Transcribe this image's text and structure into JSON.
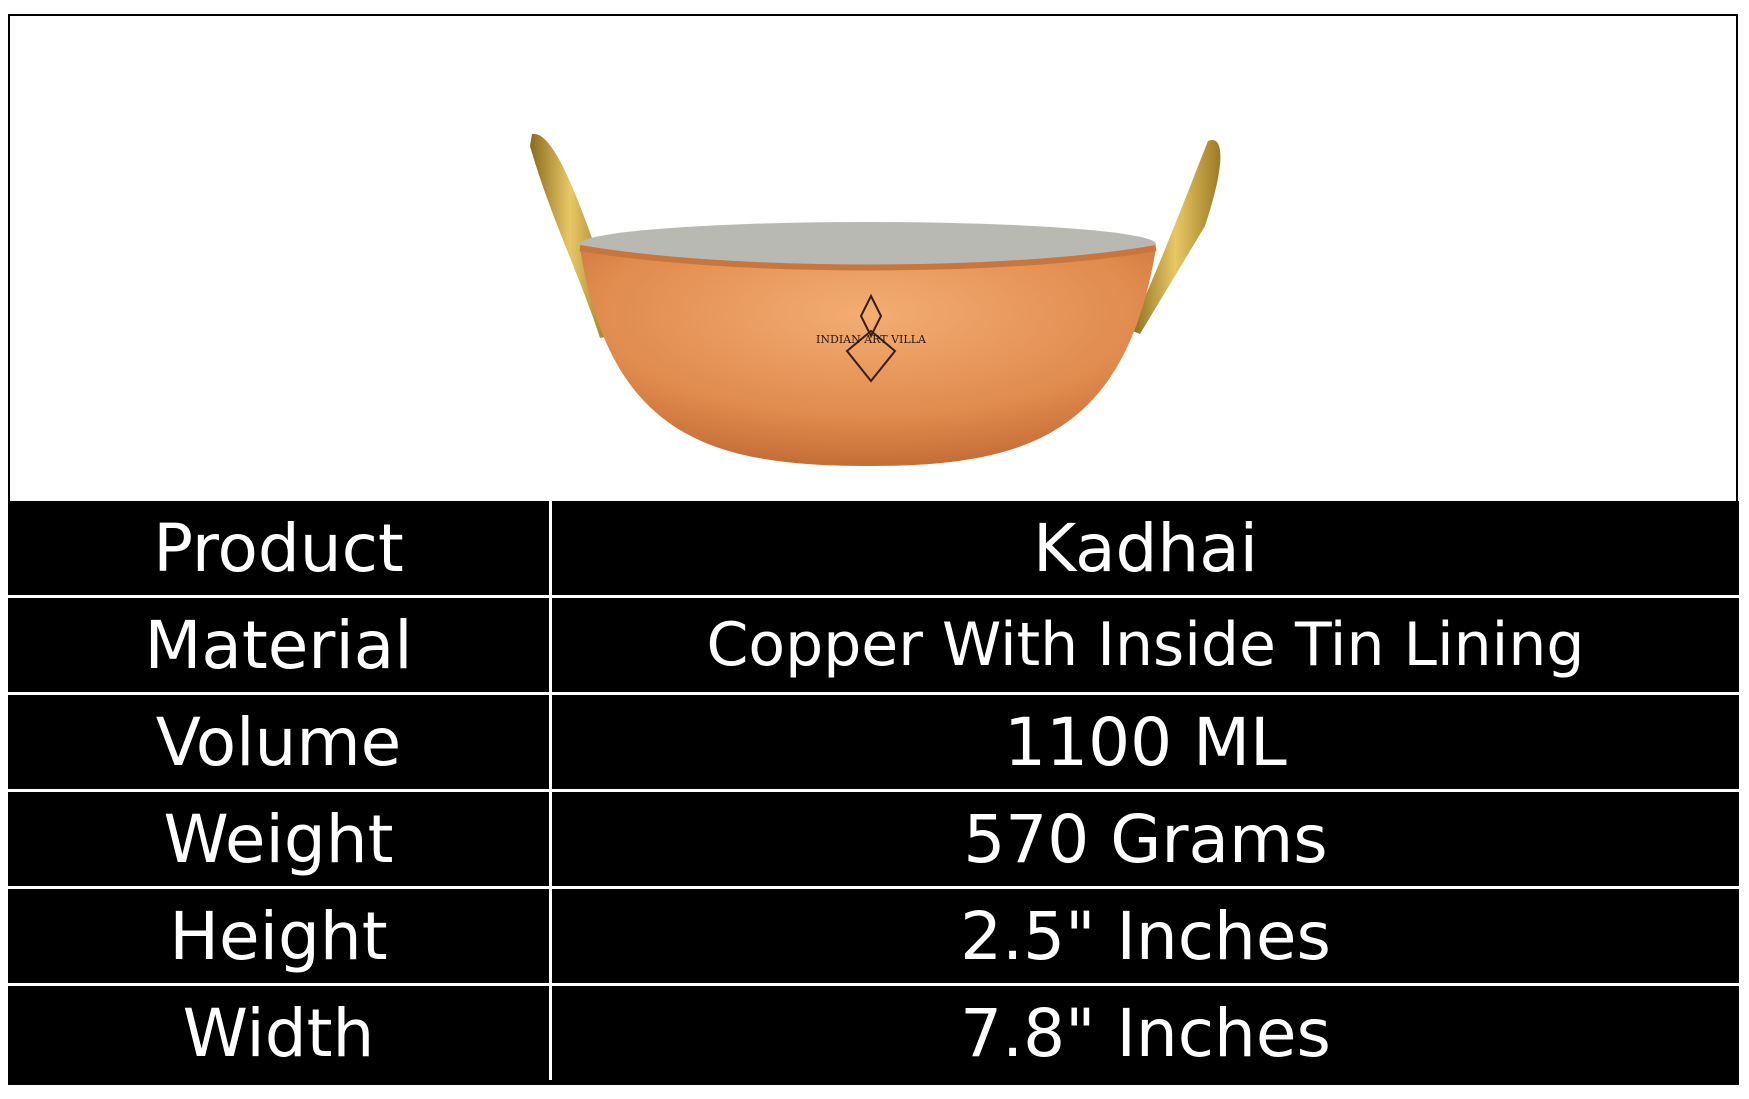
{
  "product_image": {
    "alt": "Copper kadhai with brass handles",
    "logo_text": "INDIAN ART VILLA",
    "colors": {
      "copper": "#e08a4e",
      "brass": "#c9a23a",
      "tin": "#b9b9b4"
    }
  },
  "specs": [
    {
      "label": "Product",
      "value": "Kadhai"
    },
    {
      "label": "Material",
      "value": "Copper With Inside Tin Lining"
    },
    {
      "label": "Volume",
      "value": "1100 ML"
    },
    {
      "label": "Weight",
      "value": "570 Grams"
    },
    {
      "label": "Height",
      "value": "2.5\" Inches"
    },
    {
      "label": "Width",
      "value": "7.8\" Inches"
    }
  ]
}
